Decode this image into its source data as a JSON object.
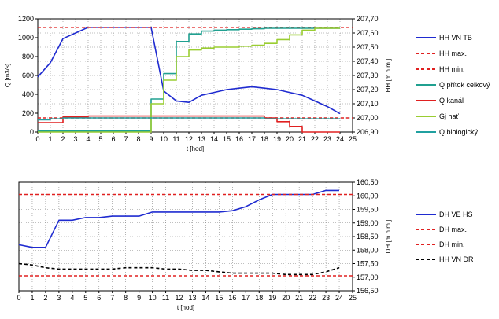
{
  "chart_data": [
    {
      "type": "line",
      "xlabel": "t [hod]",
      "ylabel_left": "Q [m3/s]",
      "ylabel_right": "HH [m.n.m.]",
      "xlim": [
        0,
        25
      ],
      "ylim_left": [
        0,
        1200
      ],
      "ylim_right": [
        206.9,
        207.7
      ],
      "x_ticks": [
        "0",
        "1",
        "2",
        "3",
        "4",
        "5",
        "6",
        "7",
        "8",
        "9",
        "10",
        "11",
        "12",
        "13",
        "14",
        "15",
        "16",
        "17",
        "18",
        "19",
        "20",
        "21",
        "22",
        "23",
        "24",
        "25"
      ],
      "y_left_ticks": [
        "0",
        "200",
        "400",
        "600",
        "800",
        "1000",
        "1200"
      ],
      "y_right_ticks": [
        "206,90",
        "207,00",
        "207,10",
        "207,20",
        "207,30",
        "207,40",
        "207,50",
        "207,60",
        "207,70"
      ],
      "grid": true,
      "legend_position": "right",
      "series": [
        {
          "name": "HH VN TB",
          "axis": "right",
          "color": "#1f2bd0",
          "style": "solid",
          "points": [
            [
              0,
              207.29
            ],
            [
              1,
              207.39
            ],
            [
              2,
              207.56
            ],
            [
              3,
              207.6
            ],
            [
              4,
              207.64
            ],
            [
              5,
              207.64
            ],
            [
              6,
              207.64
            ],
            [
              7,
              207.64
            ],
            [
              8,
              207.64
            ],
            [
              9,
              207.64
            ],
            [
              10,
              207.19
            ],
            [
              11,
              207.12
            ],
            [
              12,
              207.11
            ],
            [
              13,
              207.16
            ],
            [
              14,
              207.18
            ],
            [
              15,
              207.2
            ],
            [
              16,
              207.21
            ],
            [
              17,
              207.22
            ],
            [
              18,
              207.21
            ],
            [
              19,
              207.2
            ],
            [
              20,
              207.18
            ],
            [
              21,
              207.16
            ],
            [
              22,
              207.12
            ],
            [
              23,
              207.08
            ],
            [
              24,
              207.03
            ]
          ]
        },
        {
          "name": "HH max.",
          "axis": "right",
          "color": "#e02020",
          "style": "dashed",
          "points": [
            [
              0,
              207.64
            ],
            [
              25,
              207.64
            ]
          ]
        },
        {
          "name": "HH min.",
          "axis": "right",
          "color": "#e02020",
          "style": "dashed",
          "points": [
            [
              0,
              207.0
            ],
            [
              25,
              207.0
            ]
          ]
        },
        {
          "name": "Q přítok celkový",
          "axis": "left",
          "color": "#20a090",
          "style": "step",
          "points": [
            [
              0,
              10
            ],
            [
              9,
              10
            ],
            [
              9,
              350
            ],
            [
              10,
              350
            ],
            [
              10,
              620
            ],
            [
              11,
              620
            ],
            [
              11,
              960
            ],
            [
              12,
              960
            ],
            [
              12,
              1040
            ],
            [
              13,
              1040
            ],
            [
              13,
              1070
            ],
            [
              14,
              1070
            ],
            [
              14,
              1080
            ],
            [
              15,
              1080
            ],
            [
              15,
              1085
            ],
            [
              16,
              1085
            ],
            [
              16,
              1090
            ],
            [
              17,
              1090
            ],
            [
              17,
              1095
            ],
            [
              18,
              1095
            ],
            [
              18,
              1100
            ],
            [
              24,
              1100
            ]
          ]
        },
        {
          "name": "Q kanál",
          "axis": "left",
          "color": "#e02020",
          "style": "step",
          "points": [
            [
              0,
              100
            ],
            [
              2,
              100
            ],
            [
              2,
              160
            ],
            [
              4,
              160
            ],
            [
              4,
              170
            ],
            [
              18,
              170
            ],
            [
              18,
              150
            ],
            [
              19,
              150
            ],
            [
              19,
              110
            ],
            [
              20,
              110
            ],
            [
              20,
              60
            ],
            [
              21,
              60
            ],
            [
              21,
              0
            ],
            [
              24,
              0
            ]
          ]
        },
        {
          "name": "Gj hať",
          "axis": "left",
          "color": "#9acd32",
          "style": "step",
          "points": [
            [
              0,
              0
            ],
            [
              9,
              0
            ],
            [
              9,
              300
            ],
            [
              10,
              300
            ],
            [
              10,
              550
            ],
            [
              11,
              550
            ],
            [
              11,
              800
            ],
            [
              12,
              800
            ],
            [
              12,
              870
            ],
            [
              13,
              870
            ],
            [
              13,
              890
            ],
            [
              14,
              890
            ],
            [
              14,
              900
            ],
            [
              16,
              900
            ],
            [
              16,
              910
            ],
            [
              17,
              910
            ],
            [
              17,
              920
            ],
            [
              18,
              920
            ],
            [
              18,
              940
            ],
            [
              19,
              940
            ],
            [
              19,
              980
            ],
            [
              20,
              980
            ],
            [
              20,
              1030
            ],
            [
              21,
              1030
            ],
            [
              21,
              1080
            ],
            [
              22,
              1080
            ],
            [
              22,
              1100
            ],
            [
              24,
              1100
            ]
          ]
        },
        {
          "name": "Q biologický",
          "axis": "left",
          "color": "#20a0a0",
          "style": "step",
          "points": [
            [
              0,
              130
            ],
            [
              1,
              130
            ],
            [
              1,
              140
            ],
            [
              2,
              140
            ],
            [
              2,
              150
            ],
            [
              18,
              150
            ],
            [
              18,
              140
            ],
            [
              24,
              140
            ]
          ]
        }
      ]
    },
    {
      "type": "line",
      "xlabel": "t [hod]",
      "ylabel_right": "DH [m.n.m.]",
      "xlim": [
        0,
        25
      ],
      "ylim_right": [
        156.5,
        160.5
      ],
      "x_ticks": [
        "0",
        "1",
        "2",
        "3",
        "4",
        "5",
        "6",
        "7",
        "8",
        "9",
        "10",
        "11",
        "12",
        "13",
        "14",
        "15",
        "16",
        "17",
        "18",
        "19",
        "20",
        "21",
        "22",
        "23",
        "24",
        "25"
      ],
      "y_right_ticks": [
        "156,50",
        "157,00",
        "157,50",
        "158,00",
        "158,50",
        "159,00",
        "159,50",
        "160,00",
        "160,50"
      ],
      "grid": true,
      "legend_position": "right",
      "series": [
        {
          "name": "DH VE HS",
          "axis": "right",
          "color": "#1f2bd0",
          "style": "solid",
          "points": [
            [
              0,
              158.2
            ],
            [
              1,
              158.1
            ],
            [
              2,
              158.1
            ],
            [
              3,
              159.1
            ],
            [
              4,
              159.1
            ],
            [
              5,
              159.2
            ],
            [
              6,
              159.2
            ],
            [
              7,
              159.25
            ],
            [
              8,
              159.25
            ],
            [
              9,
              159.25
            ],
            [
              10,
              159.4
            ],
            [
              11,
              159.4
            ],
            [
              12,
              159.4
            ],
            [
              13,
              159.4
            ],
            [
              14,
              159.4
            ],
            [
              15,
              159.4
            ],
            [
              16,
              159.45
            ],
            [
              17,
              159.6
            ],
            [
              18,
              159.85
            ],
            [
              19,
              160.05
            ],
            [
              20,
              160.05
            ],
            [
              21,
              160.05
            ],
            [
              22,
              160.05
            ],
            [
              23,
              160.2
            ],
            [
              24,
              160.2
            ]
          ]
        },
        {
          "name": "DH max.",
          "axis": "right",
          "color": "#e02020",
          "style": "dashed",
          "points": [
            [
              0,
              160.05
            ],
            [
              25,
              160.05
            ]
          ]
        },
        {
          "name": "DH min.",
          "axis": "right",
          "color": "#e02020",
          "style": "dashed",
          "points": [
            [
              0,
              157.05
            ],
            [
              25,
              157.05
            ]
          ]
        },
        {
          "name": "HH VN DR",
          "axis": "right",
          "color": "#000000",
          "style": "dashed",
          "points": [
            [
              0,
              157.5
            ],
            [
              1,
              157.45
            ],
            [
              2,
              157.35
            ],
            [
              3,
              157.3
            ],
            [
              4,
              157.3
            ],
            [
              5,
              157.3
            ],
            [
              6,
              157.3
            ],
            [
              7,
              157.3
            ],
            [
              8,
              157.35
            ],
            [
              9,
              157.35
            ],
            [
              10,
              157.35
            ],
            [
              11,
              157.3
            ],
            [
              12,
              157.3
            ],
            [
              13,
              157.25
            ],
            [
              14,
              157.25
            ],
            [
              15,
              157.2
            ],
            [
              16,
              157.15
            ],
            [
              17,
              157.15
            ],
            [
              18,
              157.15
            ],
            [
              19,
              157.15
            ],
            [
              20,
              157.1
            ],
            [
              21,
              157.1
            ],
            [
              22,
              157.1
            ],
            [
              23,
              157.2
            ],
            [
              24,
              157.35
            ]
          ]
        }
      ]
    }
  ]
}
